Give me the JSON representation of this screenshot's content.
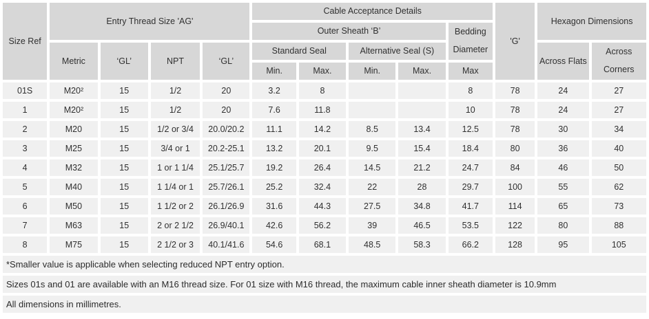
{
  "table": {
    "header": {
      "size_ref": "Size Ref",
      "entry_thread": "Entry Thread Size 'AG'",
      "metric": "Metric",
      "gl_metric": "‘GL’",
      "npt": "NPT",
      "gl_npt": "‘GL’",
      "cable_acceptance": "Cable Acceptance Details",
      "outer_sheath": "Outer Sheath ‘B’",
      "standard_seal": "Standard Seal",
      "alternative_seal": "Alternative Seal (S)",
      "std_min": "Min.",
      "std_max": "Max.",
      "alt_min": "Min.",
      "alt_max": "Max.",
      "bedding": "Bedding Diameter",
      "bedding_max": "Max",
      "g": "'G'",
      "hexagon": "Hexagon Dimensions",
      "across_flats": "Across Flats",
      "across_corners": "Across Corners"
    },
    "rows": [
      [
        "01S",
        "M20²",
        "15",
        "1/2",
        "20",
        "3.2",
        "8",
        "",
        "",
        "8",
        "78",
        "24",
        "27"
      ],
      [
        "1",
        "M20²",
        "15",
        "1/2",
        "20",
        "7.6",
        "11.8",
        "",
        "",
        "10",
        "78",
        "24",
        "27"
      ],
      [
        "2",
        "M20",
        "15",
        "1/2 or 3/4",
        "20.0/20.2",
        "11.1",
        "14.2",
        "8.5",
        "13.4",
        "12.5",
        "78",
        "30",
        "34"
      ],
      [
        "3",
        "M25",
        "15",
        "3/4 or 1",
        "20.2-25.1",
        "13.2",
        "20.1",
        "9.5",
        "15.4",
        "18.4",
        "80",
        "36",
        "40"
      ],
      [
        "4",
        "M32",
        "15",
        "1 or 1 1/4",
        "25.1/25.7",
        "19.2",
        "26.4",
        "14.5",
        "21.2",
        "24.7",
        "84",
        "46",
        "50"
      ],
      [
        "5",
        "M40",
        "15",
        "1 1/4 or 1",
        "25.7/26.1",
        "25.2",
        "32.4",
        "22",
        "28",
        "29.7",
        "100",
        "55",
        "62"
      ],
      [
        "6",
        "M50",
        "15",
        "1 1/2 or 2",
        "26.1/26.9",
        "31.6",
        "44.3",
        "27.5",
        "34.8",
        "41.7",
        "114",
        "65",
        "73"
      ],
      [
        "7",
        "M63",
        "15",
        "2 or 2 1/2",
        "26.9/40.1",
        "42.6",
        "56.2",
        "39",
        "46.5",
        "53.5",
        "122",
        "80",
        "88"
      ],
      [
        "8",
        "M75",
        "15",
        "2 1/2 or 3",
        "40.1/41.6",
        "54.6",
        "68.1",
        "48.5",
        "58.3",
        "66.2",
        "128",
        "95",
        "105"
      ]
    ],
    "footnotes": [
      "*Smaller value is applicable when selecting reduced NPT entry option.",
      "Sizes 01s and 01 are available with an M16 thread size. For 01 size with M16 thread, the maximum cable inner sheath diameter is 10.9mm",
      "All dimensions in millimetres."
    ],
    "colors": {
      "header_bg": "#d7d7d7",
      "cell_bg": "#f0f0f0",
      "gap": "#ffffff",
      "text": "#303030"
    }
  }
}
